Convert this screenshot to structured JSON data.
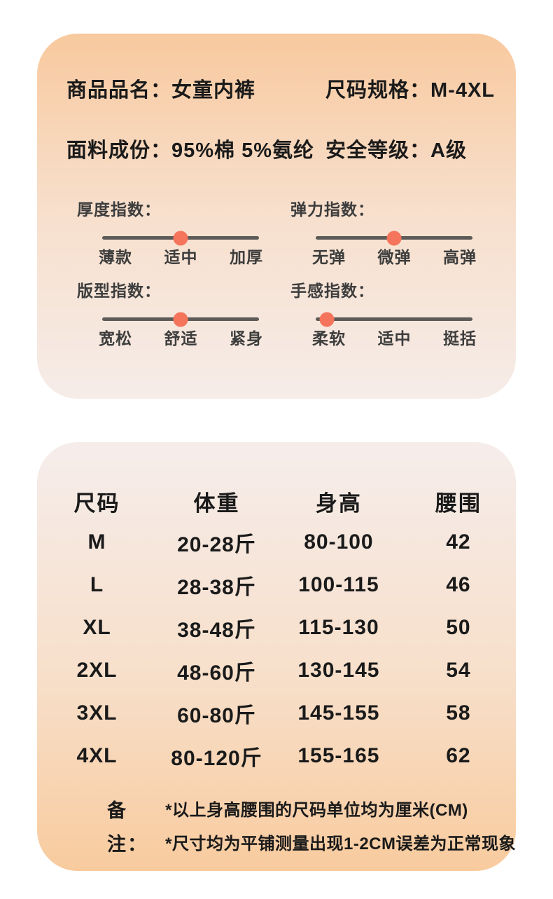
{
  "colors": {
    "page_bg": "#ffffff",
    "text_main": "#1a1a1a",
    "text_soft": "#3d3d3d",
    "track": "#5d5b57",
    "dot": "#f4745c",
    "card1_top": "#f8c99e",
    "card1_mid": "#f7dfcc",
    "card1_bot": "#f6ece8",
    "card2_top": "#f6edeb",
    "card2_mid": "#f7dfca",
    "card2_bot": "#f8cb9e"
  },
  "product_card": {
    "fields": [
      {
        "label": "商品品名：",
        "value": "女童内裤"
      },
      {
        "label": "尺码规格：",
        "value": "M-4XL"
      },
      {
        "label": "面料成份：",
        "value": "95%棉 5%氨纶"
      },
      {
        "label": "安全等级：",
        "value": "A级"
      }
    ],
    "indicators": [
      {
        "title": "厚度指数：",
        "levels": [
          "薄款",
          "适中",
          "加厚"
        ],
        "position_percent": 50
      },
      {
        "title": "弹力指数：",
        "levels": [
          "无弹",
          "微弹",
          "高弹"
        ],
        "position_percent": 50
      },
      {
        "title": "版型指数：",
        "levels": [
          "宽松",
          "舒适",
          "紧身"
        ],
        "position_percent": 50
      },
      {
        "title": "手感指数：",
        "levels": [
          "柔软",
          "适中",
          "挺括"
        ],
        "position_percent": 7
      }
    ]
  },
  "size_card": {
    "table": {
      "headers": [
        "尺码",
        "体重",
        "身高",
        "腰围"
      ],
      "rows": [
        [
          "M",
          "20-28斤",
          "80-100",
          "42"
        ],
        [
          "L",
          "28-38斤",
          "100-115",
          "46"
        ],
        [
          "XL",
          "38-48斤",
          "115-130",
          "50"
        ],
        [
          "2XL",
          "48-60斤",
          "130-145",
          "54"
        ],
        [
          "3XL",
          "60-80斤",
          "145-155",
          "58"
        ],
        [
          "4XL",
          "80-120斤",
          "155-165",
          "62"
        ]
      ]
    },
    "notes": {
      "label": "备注：",
      "lines": [
        "*以上身高腰围的尺码单位均为厘米(CM)",
        "*尺寸均为平铺测量出现1-2CM误差为正常现象"
      ]
    }
  }
}
